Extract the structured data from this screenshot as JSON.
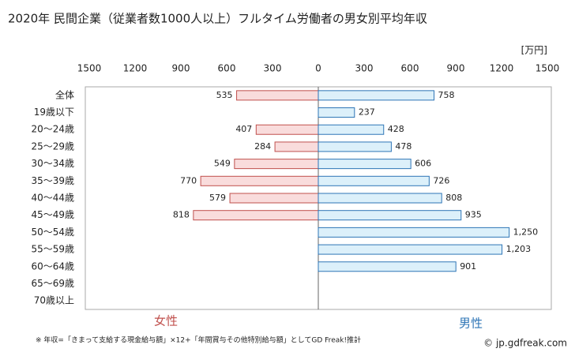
{
  "chart_data": {
    "type": "butterfly",
    "title": "2020年 民間企業（従業者数1000人以上）フルタイム労働者の男女別平均年収",
    "unit": "[万円]",
    "categories": [
      "全体",
      "19歳以下",
      "20〜24歳",
      "25〜29歳",
      "30〜34歳",
      "35〜39歳",
      "40〜44歳",
      "45〜49歳",
      "50〜54歳",
      "55〜59歳",
      "60〜64歳",
      "65〜69歳",
      "70歳以上"
    ],
    "series": [
      {
        "name": "女性",
        "side": "left",
        "color": "#f9dcdc",
        "edge": "#c0504d",
        "label_color": "#c0504d",
        "values": [
          535,
          null,
          407,
          284,
          549,
          770,
          579,
          818,
          null,
          null,
          null,
          null,
          null
        ]
      },
      {
        "name": "男性",
        "side": "right",
        "color": "#dcf0fa",
        "edge": "#2e75b6",
        "label_color": "#2e75b6",
        "values": [
          758,
          237,
          428,
          478,
          606,
          726,
          808,
          935,
          1250,
          1203,
          901,
          null,
          null
        ],
        "value_labels": [
          "758",
          "237",
          "428",
          "478",
          "606",
          "726",
          "808",
          "935",
          "1,250",
          "1,203",
          "901",
          null,
          null
        ]
      }
    ],
    "xlim": [
      -1500,
      1500
    ],
    "xticks": [
      {
        "value": -1500,
        "label": "1500"
      },
      {
        "value": -1200,
        "label": "1200"
      },
      {
        "value": -900,
        "label": "900"
      },
      {
        "value": -600,
        "label": "600"
      },
      {
        "value": -300,
        "label": "300"
      },
      0,
      300,
      600,
      900,
      1200,
      1500
    ],
    "footnote": "※ 年収=「きまって支給する現金給与額」×12+「年間賞与その他特別給与額」としてGD Freak!推計",
    "credit": "© jp.gdfreak.com"
  }
}
